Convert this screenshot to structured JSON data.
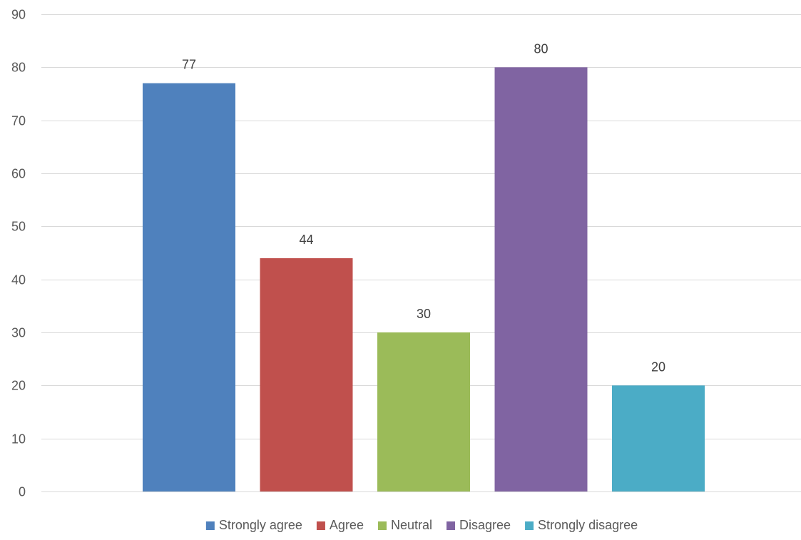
{
  "chart_data": {
    "type": "bar",
    "title": "",
    "xlabel": "",
    "ylabel": "",
    "categories": [
      "Strongly agree",
      "Agree",
      "Neutral",
      "Disagree",
      "Strongly disagree"
    ],
    "values": [
      77,
      44,
      30,
      80,
      20
    ],
    "data_labels": [
      "77",
      "44",
      "30",
      "80",
      "20"
    ],
    "colors": [
      "#4f81bd",
      "#c0504d",
      "#9bbb59",
      "#8064a2",
      "#4bacc6"
    ],
    "ylim": [
      0,
      90
    ],
    "yticks": [
      0,
      10,
      20,
      30,
      40,
      50,
      60,
      70,
      80,
      90
    ],
    "ytick_labels": [
      "0",
      "10",
      "20",
      "30",
      "40",
      "50",
      "60",
      "70",
      "80",
      "90"
    ],
    "grid": true,
    "gridline_color": "#d9d9d9",
    "legend": {
      "position": "bottom",
      "entries": [
        "Strongly agree",
        "Agree",
        "Neutral",
        "Disagree",
        "Strongly disagree"
      ]
    }
  }
}
